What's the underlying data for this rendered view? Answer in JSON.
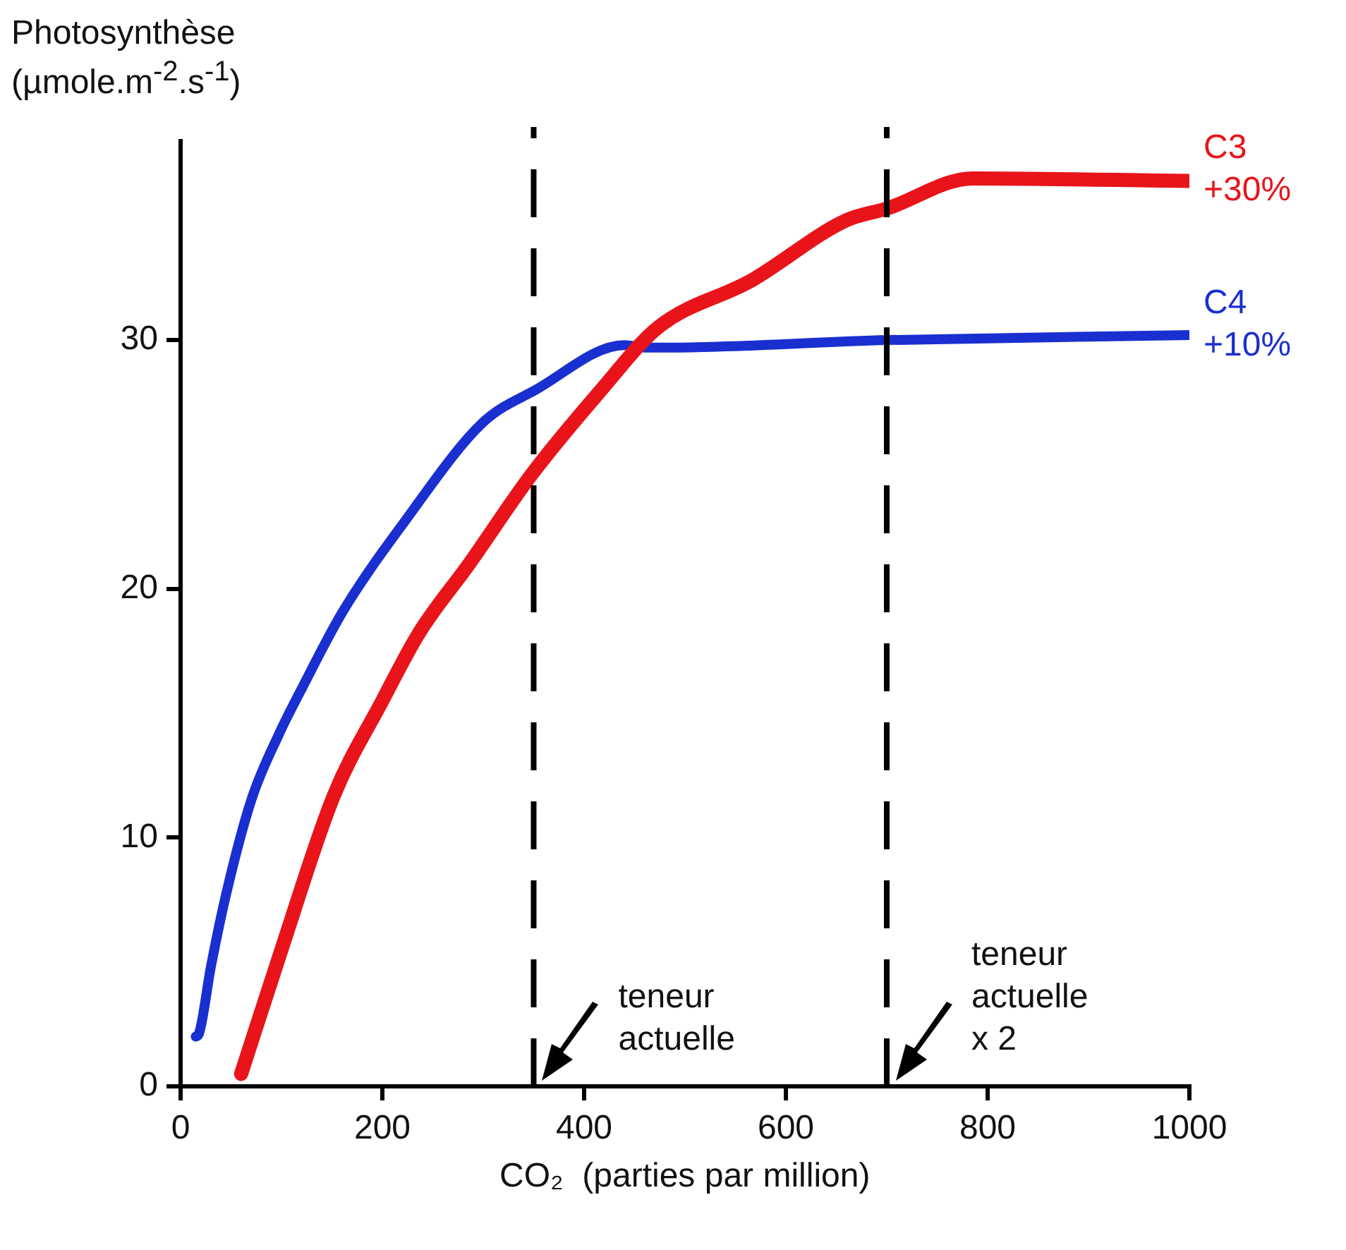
{
  "chart_data": {
    "type": "line",
    "ylabel": "Photosynthèse (µmole.m$^{-2}$.s$^{-1}$)",
    "xlabel": "CO₂  (parties par million)",
    "xlim": [
      0,
      1000
    ],
    "xticks": [
      0,
      200,
      400,
      600,
      800,
      1000
    ],
    "ylim": [
      0,
      38
    ],
    "yticks": [
      0,
      10,
      20,
      30
    ],
    "grid": false,
    "legend": false,
    "marker": "none",
    "line_style": "solid",
    "series": [
      {
        "name": "C3 +30%",
        "color": "#e8141a",
        "x": [
          60,
          100,
          152,
          200,
          236,
          286,
          348,
          417,
          473,
          566,
          659,
          701,
          785,
          1000
        ],
        "values": [
          0.5,
          5.5,
          11.7,
          15.5,
          18.2,
          21.0,
          24.6,
          28.0,
          30.5,
          32.4,
          34.8,
          35.3,
          36.5,
          36.4
        ]
      },
      {
        "name": "C4 +10%",
        "color": "#1a2fd0",
        "x": [
          15,
          18,
          30,
          45,
          70,
          98,
          119,
          161,
          222,
          300,
          352,
          440,
          460,
          482,
          700,
          1000
        ],
        "values": [
          2.0,
          2.1,
          4.8,
          7.7,
          11.5,
          14.2,
          15.9,
          19.1,
          22.7,
          26.7,
          28.0,
          29.8,
          29.7,
          29.7,
          30.0,
          30.2
        ]
      }
    ],
    "ref_lines": [
      {
        "axis": "x",
        "value": 350,
        "line_style": "dashed",
        "color": "#000000"
      },
      {
        "axis": "x",
        "value": 700,
        "line_style": "dashed",
        "color": "#000000"
      }
    ],
    "annotations": [
      {
        "text": "teneur actuelle",
        "x": 350,
        "y": 0
      },
      {
        "text": "teneur actuelle x 2",
        "x": 700,
        "y": 0
      }
    ]
  }
}
